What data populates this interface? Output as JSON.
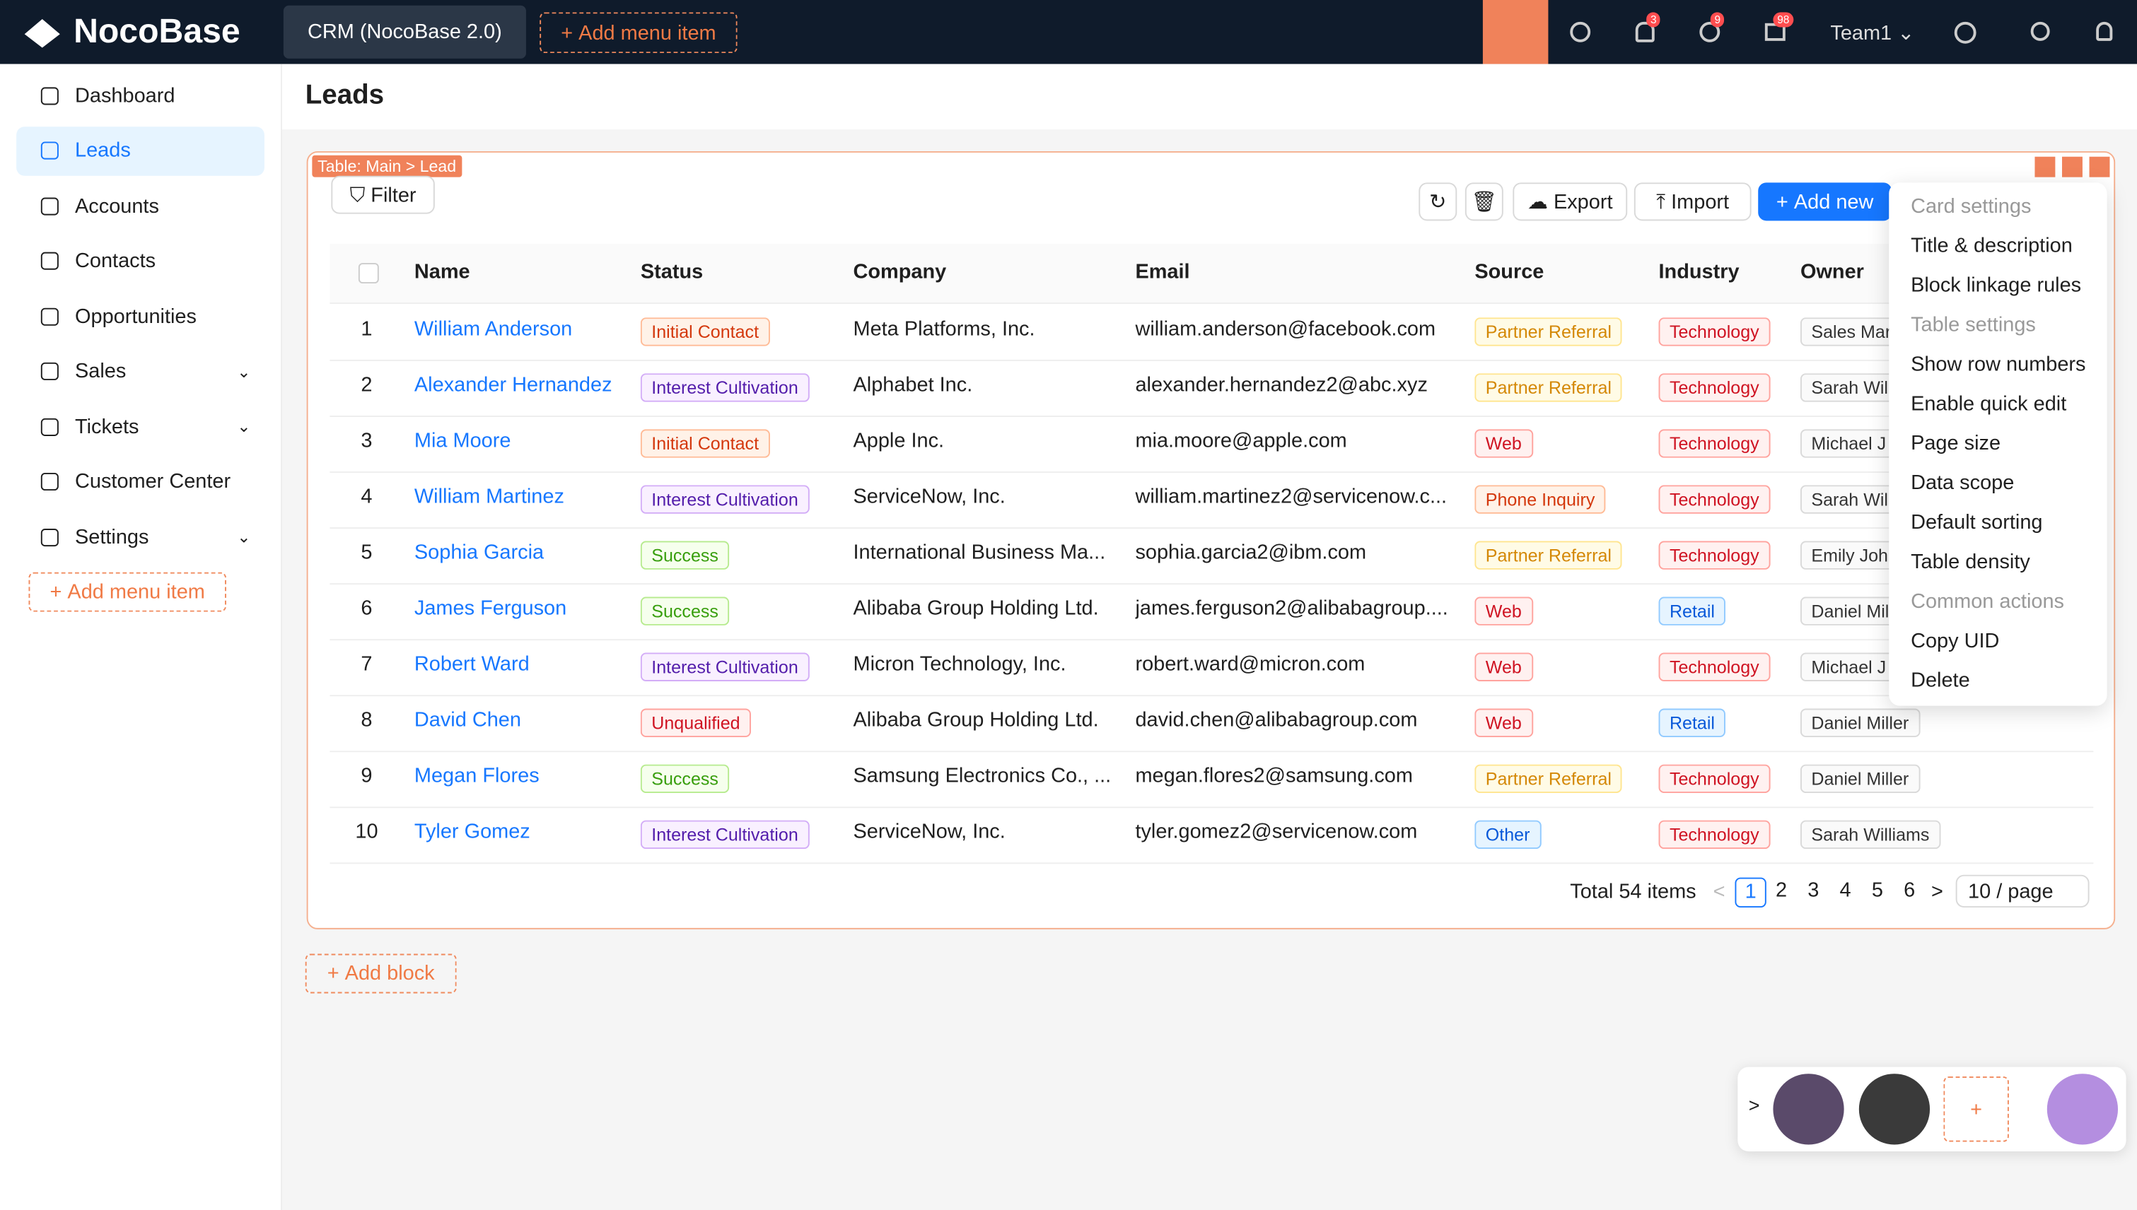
{
  "header": {
    "logo": "NocoBase",
    "app": "CRM (NocoBase 2.0)",
    "add_menu_item": "Add menu item",
    "badges": [
      3,
      9,
      98
    ],
    "team": "Team1"
  },
  "sidebar": {
    "items": [
      {
        "label": "Dashboard",
        "expandable": false,
        "active": false
      },
      {
        "label": "Leads",
        "expandable": false,
        "active": true
      },
      {
        "label": "Accounts",
        "expandable": false,
        "active": false
      },
      {
        "label": "Contacts",
        "expandable": false,
        "active": false
      },
      {
        "label": "Opportunities",
        "expandable": false,
        "active": false
      },
      {
        "label": "Sales",
        "expandable": true,
        "active": false
      },
      {
        "label": "Tickets",
        "expandable": true,
        "active": false
      },
      {
        "label": "Customer Center",
        "expandable": false,
        "active": false
      },
      {
        "label": "Settings",
        "expandable": true,
        "active": false
      }
    ],
    "add_menu_item": "Add menu item"
  },
  "page": {
    "title": "Leads",
    "block_label": "Table: Main > Lead",
    "actions": {
      "filter": "Filter",
      "export": "Export",
      "import": "Import",
      "add_new": "Add new"
    },
    "add_block": "Add block"
  },
  "table": {
    "columns": [
      "Name",
      "Status",
      "Company",
      "Email",
      "Source",
      "Industry",
      "Owner"
    ],
    "rows": [
      [
        1,
        "William Anderson",
        {
          "text": "Initial Contact",
          "color": "orange"
        },
        "Meta Platforms, Inc.",
        "william.anderson@facebook.com",
        {
          "text": "Partner Referral",
          "color": "gold"
        },
        {
          "text": "Technology",
          "color": "red"
        },
        {
          "text": "Sales Mar",
          "color": "default"
        }
      ],
      [
        2,
        "Alexander Hernandez",
        {
          "text": "Interest Cultivation",
          "color": "purple"
        },
        "Alphabet Inc.",
        "alexander.hernandez2@abc.xyz",
        {
          "text": "Partner Referral",
          "color": "gold"
        },
        {
          "text": "Technology",
          "color": "red"
        },
        {
          "text": "Sarah Will",
          "color": "default"
        }
      ],
      [
        3,
        "Mia Moore",
        {
          "text": "Initial Contact",
          "color": "orange"
        },
        "Apple Inc.",
        "mia.moore@apple.com",
        {
          "text": "Web",
          "color": "red"
        },
        {
          "text": "Technology",
          "color": "red"
        },
        {
          "text": "Michael J",
          "color": "default"
        }
      ],
      [
        4,
        "William Martinez",
        {
          "text": "Interest Cultivation",
          "color": "purple"
        },
        "ServiceNow, Inc.",
        "william.martinez2@servicenow.c...",
        {
          "text": "Phone Inquiry",
          "color": "orange"
        },
        {
          "text": "Technology",
          "color": "red"
        },
        {
          "text": "Sarah Will",
          "color": "default"
        }
      ],
      [
        5,
        "Sophia Garcia",
        {
          "text": "Success",
          "color": "green"
        },
        "International Business Ma...",
        "sophia.garcia2@ibm.com",
        {
          "text": "Partner Referral",
          "color": "gold"
        },
        {
          "text": "Technology",
          "color": "red"
        },
        {
          "text": "Emily Joh",
          "color": "default"
        }
      ],
      [
        6,
        "James Ferguson",
        {
          "text": "Success",
          "color": "green"
        },
        "Alibaba Group Holding Ltd.",
        "james.ferguson2@alibabagroup....",
        {
          "text": "Web",
          "color": "red"
        },
        {
          "text": "Retail",
          "color": "blue"
        },
        {
          "text": "Daniel Mil",
          "color": "default"
        }
      ],
      [
        7,
        "Robert Ward",
        {
          "text": "Interest Cultivation",
          "color": "purple"
        },
        "Micron Technology, Inc.",
        "robert.ward@micron.com",
        {
          "text": "Web",
          "color": "red"
        },
        {
          "text": "Technology",
          "color": "red"
        },
        {
          "text": "Michael J",
          "color": "default"
        }
      ],
      [
        8,
        "David Chen",
        {
          "text": "Unqualified",
          "color": "red"
        },
        "Alibaba Group Holding Ltd.",
        "david.chen@alibabagroup.com",
        {
          "text": "Web",
          "color": "red"
        },
        {
          "text": "Retail",
          "color": "blue"
        },
        {
          "text": "Daniel Miller",
          "color": "default"
        }
      ],
      [
        9,
        "Megan Flores",
        {
          "text": "Success",
          "color": "green"
        },
        "Samsung Electronics Co., ...",
        "megan.flores2@samsung.com",
        {
          "text": "Partner Referral",
          "color": "gold"
        },
        {
          "text": "Technology",
          "color": "red"
        },
        {
          "text": "Daniel Miller",
          "color": "default"
        }
      ],
      [
        10,
        "Tyler Gomez",
        {
          "text": "Interest Cultivation",
          "color": "purple"
        },
        "ServiceNow, Inc.",
        "tyler.gomez2@servicenow.com",
        {
          "text": "Other",
          "color": "blue"
        },
        {
          "text": "Technology",
          "color": "red"
        },
        {
          "text": "Sarah Williams",
          "color": "default"
        }
      ]
    ]
  },
  "pagination": {
    "total": "Total 54 items",
    "pages": [
      1,
      2,
      3,
      4,
      5,
      6
    ],
    "current": 1,
    "page_size": "10 / page"
  },
  "settings_menu": {
    "items": [
      {
        "text": "Card settings",
        "group": true
      },
      {
        "text": "Title & description",
        "group": false
      },
      {
        "text": "Block linkage rules",
        "group": false
      },
      {
        "text": "Table settings",
        "group": true
      },
      {
        "text": "Show row numbers",
        "group": false
      },
      {
        "text": "Enable quick edit",
        "group": false
      },
      {
        "text": "Page size",
        "group": false
      },
      {
        "text": "Data scope",
        "group": false
      },
      {
        "text": "Default sorting",
        "group": false
      },
      {
        "text": "Table density",
        "group": false
      },
      {
        "text": "Common actions",
        "group": true
      },
      {
        "text": "Copy UID",
        "group": false
      },
      {
        "text": "Delete",
        "group": false
      }
    ]
  }
}
